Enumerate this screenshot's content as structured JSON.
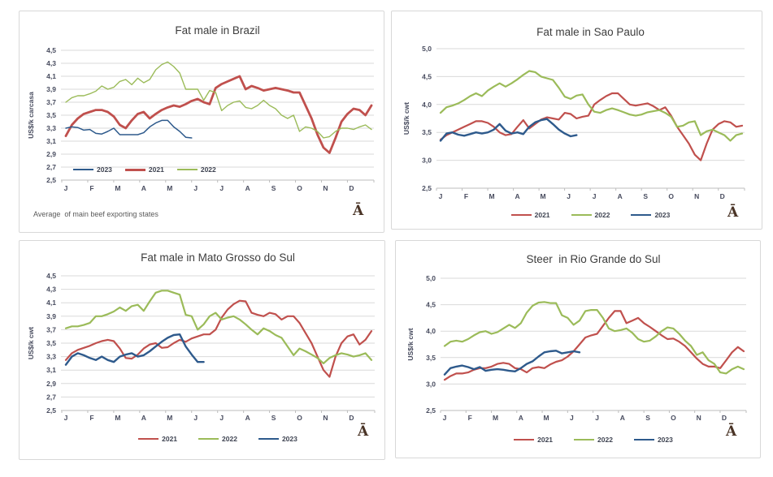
{
  "logo": {
    "glyph": "Ā",
    "color": "#4a3426"
  },
  "colors": {
    "grid": "#d9d9d9",
    "axis_line": "#bdbdbd",
    "axis_text": "#474b5e",
    "title_text": "#3d3d3d",
    "panel_border": "#d8d8d8",
    "red_2021": "#c0504d",
    "green_2022": "#9bbb59",
    "blue_2023": "#2e5a8c"
  },
  "chart_data": [
    {
      "type": "line",
      "title": "Fat male in Brazil",
      "ylabel": "US$/k carcasa",
      "y_min": 2.5,
      "y_max": 4.5,
      "y_tick_labels": [
        "4,5",
        "4,3",
        "4,1",
        "3,9",
        "3,7",
        "3,5",
        "3,3",
        "3,1",
        "2,9",
        "2,7",
        "2,5"
      ],
      "x_tick_labels": [
        "J",
        "F",
        "M",
        "A",
        "M",
        "J",
        "J",
        "A",
        "S",
        "O",
        "N",
        "D"
      ],
      "x_weeks_per_year": 52,
      "legend_position": "inside-bottom-left",
      "legend_order": [
        "2023",
        "2021",
        "2022"
      ],
      "footnote": "Average  of main beef exporting states",
      "series": [
        {
          "name": "2021",
          "color": "#c0504d",
          "line_width": 2.8,
          "values": [
            3.18,
            3.35,
            3.45,
            3.52,
            3.55,
            3.58,
            3.58,
            3.55,
            3.48,
            3.35,
            3.3,
            3.42,
            3.52,
            3.55,
            3.45,
            3.52,
            3.58,
            3.62,
            3.65,
            3.63,
            3.67,
            3.72,
            3.75,
            3.7,
            3.67,
            3.92,
            3.98,
            4.02,
            4.06,
            4.1,
            3.9,
            3.95,
            3.92,
            3.88,
            3.9,
            3.92,
            3.9,
            3.88,
            3.85,
            3.85,
            3.65,
            3.45,
            3.2,
            3.0,
            2.92,
            3.15,
            3.4,
            3.52,
            3.6,
            3.58,
            3.5,
            3.65
          ]
        },
        {
          "name": "2022",
          "color": "#9bbb59",
          "line_width": 1.4,
          "values": [
            3.7,
            3.77,
            3.8,
            3.8,
            3.83,
            3.87,
            3.95,
            3.9,
            3.93,
            4.02,
            4.05,
            3.97,
            4.07,
            4.0,
            4.05,
            4.2,
            4.28,
            4.32,
            4.25,
            4.15,
            3.9,
            3.9,
            3.9,
            3.73,
            3.88,
            3.85,
            3.57,
            3.65,
            3.7,
            3.72,
            3.62,
            3.6,
            3.65,
            3.73,
            3.65,
            3.6,
            3.5,
            3.45,
            3.5,
            3.25,
            3.32,
            3.3,
            3.25,
            3.15,
            3.17,
            3.25,
            3.3,
            3.3,
            3.28,
            3.32,
            3.35,
            3.28
          ]
        },
        {
          "name": "2023",
          "color": "#2e5a8c",
          "line_width": 1.5,
          "values": [
            3.3,
            3.32,
            3.31,
            3.27,
            3.28,
            3.22,
            3.21,
            3.25,
            3.3,
            3.2,
            3.2,
            3.2,
            3.2,
            3.23,
            3.32,
            3.38,
            3.42,
            3.42,
            3.32,
            3.25,
            3.16,
            3.15
          ]
        }
      ]
    },
    {
      "type": "line",
      "title": "Fat male in Sao Paulo",
      "ylabel": "US$/k cwt",
      "y_min": 2.5,
      "y_max": 5.0,
      "y_tick_labels": [
        "5,0",
        "4,5",
        "4,0",
        "3,5",
        "3,0",
        "2,5"
      ],
      "x_tick_labels": [
        "J",
        "F",
        "M",
        "A",
        "M",
        "J",
        "J",
        "A",
        "S",
        "O",
        "N",
        "D"
      ],
      "x_weeks_per_year": 52,
      "legend_position": "below-center",
      "legend_order": [
        "2021",
        "2022",
        "2023"
      ],
      "footnote": "",
      "series": [
        {
          "name": "2021",
          "color": "#c0504d",
          "line_width": 2.2,
          "values": [
            3.37,
            3.45,
            3.5,
            3.55,
            3.6,
            3.65,
            3.7,
            3.7,
            3.67,
            3.6,
            3.5,
            3.45,
            3.47,
            3.6,
            3.72,
            3.57,
            3.65,
            3.73,
            3.77,
            3.75,
            3.73,
            3.85,
            3.83,
            3.75,
            3.78,
            3.8,
            4.0,
            4.08,
            4.15,
            4.2,
            4.2,
            4.1,
            4.0,
            3.98,
            4.0,
            4.02,
            3.97,
            3.9,
            3.95,
            3.8,
            3.6,
            3.45,
            3.3,
            3.1,
            3.0,
            3.3,
            3.55,
            3.65,
            3.7,
            3.68,
            3.6,
            3.62
          ]
        },
        {
          "name": "2022",
          "color": "#9bbb59",
          "line_width": 2.2,
          "values": [
            3.85,
            3.95,
            3.98,
            4.02,
            4.08,
            4.15,
            4.2,
            4.15,
            4.25,
            4.32,
            4.38,
            4.32,
            4.38,
            4.45,
            4.53,
            4.6,
            4.58,
            4.5,
            4.47,
            4.44,
            4.3,
            4.14,
            4.1,
            4.16,
            4.18,
            4.0,
            3.87,
            3.85,
            3.9,
            3.93,
            3.9,
            3.86,
            3.82,
            3.8,
            3.82,
            3.86,
            3.88,
            3.9,
            3.85,
            3.78,
            3.6,
            3.62,
            3.68,
            3.7,
            3.45,
            3.52,
            3.55,
            3.5,
            3.45,
            3.35,
            3.45,
            3.48
          ]
        },
        {
          "name": "2023",
          "color": "#2e5a8c",
          "line_width": 2.4,
          "values": [
            3.35,
            3.48,
            3.5,
            3.46,
            3.44,
            3.47,
            3.5,
            3.48,
            3.5,
            3.55,
            3.65,
            3.53,
            3.48,
            3.5,
            3.47,
            3.6,
            3.68,
            3.72,
            3.74,
            3.65,
            3.55,
            3.48,
            3.43,
            3.45
          ]
        }
      ]
    },
    {
      "type": "line",
      "title": "Fat male in Mato Grosso do Sul",
      "ylabel": "US$/k cwt",
      "y_min": 2.5,
      "y_max": 4.5,
      "y_tick_labels": [
        "4,5",
        "4,3",
        "4,1",
        "3,9",
        "3,7",
        "3,5",
        "3,3",
        "3,1",
        "2,9",
        "2,7",
        "2,5"
      ],
      "x_tick_labels": [
        "J",
        "F",
        "M",
        "A",
        "M",
        "J",
        "J",
        "A",
        "S",
        "O",
        "N",
        "D"
      ],
      "x_weeks_per_year": 52,
      "legend_position": "below-center",
      "legend_order": [
        "2021",
        "2022",
        "2023"
      ],
      "footnote": "",
      "series": [
        {
          "name": "2021",
          "color": "#c0504d",
          "line_width": 2.2,
          "values": [
            3.25,
            3.35,
            3.4,
            3.43,
            3.46,
            3.5,
            3.53,
            3.55,
            3.53,
            3.42,
            3.28,
            3.27,
            3.33,
            3.42,
            3.48,
            3.5,
            3.43,
            3.44,
            3.5,
            3.55,
            3.52,
            3.57,
            3.6,
            3.63,
            3.63,
            3.7,
            3.88,
            4.0,
            4.08,
            4.13,
            4.12,
            3.95,
            3.92,
            3.9,
            3.95,
            3.93,
            3.85,
            3.9,
            3.9,
            3.8,
            3.65,
            3.5,
            3.3,
            3.1,
            3.0,
            3.3,
            3.5,
            3.6,
            3.63,
            3.48,
            3.55,
            3.68
          ]
        },
        {
          "name": "2022",
          "color": "#9bbb59",
          "line_width": 2.2,
          "values": [
            3.72,
            3.75,
            3.75,
            3.77,
            3.8,
            3.9,
            3.9,
            3.93,
            3.97,
            4.03,
            3.98,
            4.05,
            4.07,
            3.98,
            4.12,
            4.25,
            4.28,
            4.28,
            4.25,
            4.22,
            3.92,
            3.9,
            3.7,
            3.78,
            3.9,
            3.95,
            3.85,
            3.88,
            3.9,
            3.85,
            3.78,
            3.7,
            3.63,
            3.72,
            3.68,
            3.62,
            3.58,
            3.45,
            3.32,
            3.42,
            3.38,
            3.33,
            3.28,
            3.2,
            3.28,
            3.32,
            3.35,
            3.33,
            3.3,
            3.32,
            3.35,
            3.25
          ]
        },
        {
          "name": "2023",
          "color": "#2e5a8c",
          "line_width": 2.4,
          "values": [
            3.18,
            3.3,
            3.35,
            3.32,
            3.28,
            3.25,
            3.3,
            3.25,
            3.22,
            3.3,
            3.33,
            3.35,
            3.3,
            3.32,
            3.38,
            3.45,
            3.52,
            3.58,
            3.62,
            3.63,
            3.45,
            3.33,
            3.22,
            3.22
          ]
        }
      ]
    },
    {
      "type": "line",
      "title": "Steer  in Rio Grande do Sul",
      "ylabel": "US$/k cwt",
      "y_min": 2.5,
      "y_max": 5.0,
      "y_tick_labels": [
        "5,0",
        "4,5",
        "4,0",
        "3,5",
        "3,0",
        "2,5"
      ],
      "x_tick_labels": [
        "J",
        "F",
        "M",
        "A",
        "M",
        "J",
        "J",
        "A",
        "S",
        "O",
        "N",
        "D"
      ],
      "x_weeks_per_year": 52,
      "legend_position": "below-center",
      "legend_order": [
        "2021",
        "2022",
        "2023"
      ],
      "footnote": "",
      "series": [
        {
          "name": "2021",
          "color": "#c0504d",
          "line_width": 2.2,
          "values": [
            3.08,
            3.15,
            3.2,
            3.2,
            3.22,
            3.27,
            3.3,
            3.3,
            3.33,
            3.38,
            3.4,
            3.38,
            3.3,
            3.28,
            3.22,
            3.3,
            3.32,
            3.3,
            3.37,
            3.42,
            3.45,
            3.52,
            3.62,
            3.75,
            3.88,
            3.92,
            3.95,
            4.1,
            4.25,
            4.38,
            4.38,
            4.15,
            4.2,
            4.25,
            4.15,
            4.08,
            4.0,
            3.92,
            3.85,
            3.86,
            3.8,
            3.72,
            3.6,
            3.48,
            3.38,
            3.33,
            3.33,
            3.3,
            3.45,
            3.6,
            3.7,
            3.62
          ]
        },
        {
          "name": "2022",
          "color": "#9bbb59",
          "line_width": 2.2,
          "values": [
            3.72,
            3.8,
            3.82,
            3.8,
            3.85,
            3.92,
            3.98,
            4.0,
            3.95,
            3.98,
            4.05,
            4.12,
            4.06,
            4.15,
            4.35,
            4.48,
            4.54,
            4.55,
            4.53,
            4.53,
            4.3,
            4.25,
            4.12,
            4.2,
            4.38,
            4.4,
            4.4,
            4.25,
            4.05,
            4.0,
            4.02,
            4.05,
            3.97,
            3.85,
            3.8,
            3.82,
            3.9,
            4.0,
            4.07,
            4.05,
            3.95,
            3.82,
            3.72,
            3.55,
            3.6,
            3.45,
            3.38,
            3.22,
            3.2,
            3.28,
            3.33,
            3.28
          ]
        },
        {
          "name": "2023",
          "color": "#2e5a8c",
          "line_width": 2.4,
          "values": [
            3.18,
            3.3,
            3.33,
            3.35,
            3.32,
            3.28,
            3.32,
            3.25,
            3.27,
            3.28,
            3.27,
            3.25,
            3.24,
            3.3,
            3.38,
            3.43,
            3.52,
            3.6,
            3.62,
            3.63,
            3.58,
            3.6,
            3.62,
            3.6
          ]
        }
      ]
    }
  ]
}
